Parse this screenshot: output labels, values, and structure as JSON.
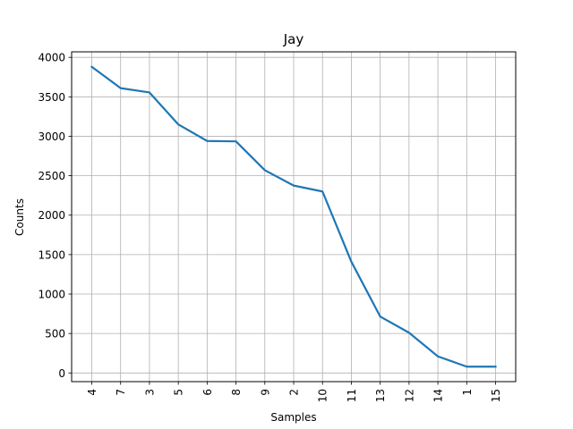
{
  "chart_data": {
    "type": "line",
    "title": "Jay",
    "xlabel": "Samples",
    "ylabel": "Counts",
    "categories": [
      "4",
      "7",
      "3",
      "5",
      "6",
      "8",
      "9",
      "2",
      "10",
      "11",
      "13",
      "12",
      "14",
      "1",
      "15"
    ],
    "series": [
      {
        "values": [
          3880,
          3610,
          3555,
          3150,
          2940,
          2935,
          2570,
          2375,
          2300,
          1410,
          715,
          510,
          210,
          80,
          80
        ],
        "color": "#1f77b4"
      }
    ],
    "ylim": [
      -110,
      4070
    ],
    "yticks": [
      0,
      500,
      1000,
      1500,
      2000,
      2500,
      3000,
      3500,
      4000
    ],
    "grid": true,
    "legend": "none"
  }
}
